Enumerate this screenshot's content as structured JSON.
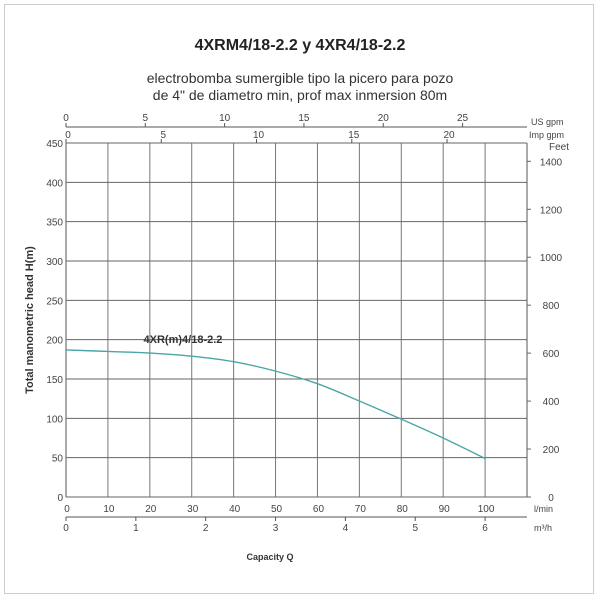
{
  "chart_data": {
    "type": "line",
    "title": "4XRM4/18-2.2 y 4XR4/18-2.2",
    "subtitle": [
      "electrobomba sumergible tipo la picero para pozo",
      "de 4\" de diametro min, prof max inmersion 80m"
    ],
    "xlabel": "Capacity Q",
    "ylabel": "Total manometric head H(m)",
    "xlim": [
      0,
      110
    ],
    "ylim": [
      0,
      450
    ],
    "grid": true,
    "x_unit": "l/min",
    "x_ticks": [
      0,
      10,
      20,
      30,
      40,
      50,
      60,
      70,
      80,
      90,
      100
    ],
    "y_ticks": [
      0,
      50,
      100,
      150,
      200,
      250,
      300,
      350,
      400,
      450
    ],
    "secondary_axes": {
      "m3h": {
        "unit": "m³/h",
        "ticks": [
          0,
          1,
          2,
          3,
          4,
          5,
          6
        ]
      },
      "us_gpm": {
        "unit": "US gpm",
        "ticks": [
          0,
          5,
          10,
          15,
          20,
          25
        ]
      },
      "imp_gpm": {
        "unit": "Imp gpm",
        "ticks": [
          0,
          5,
          10,
          15,
          20
        ]
      },
      "feet": {
        "unit": "Feet",
        "ticks": [
          0,
          200,
          400,
          600,
          800,
          1000,
          1200,
          1400
        ]
      }
    },
    "series": [
      {
        "name": "4XR(m)4/18-2.2",
        "color": "#4aa6a6",
        "x": [
          0,
          10,
          20,
          30,
          40,
          50,
          60,
          70,
          80,
          90,
          100
        ],
        "y": [
          187,
          185,
          183,
          179,
          172,
          160,
          144,
          122,
          99,
          75,
          49
        ]
      }
    ]
  }
}
